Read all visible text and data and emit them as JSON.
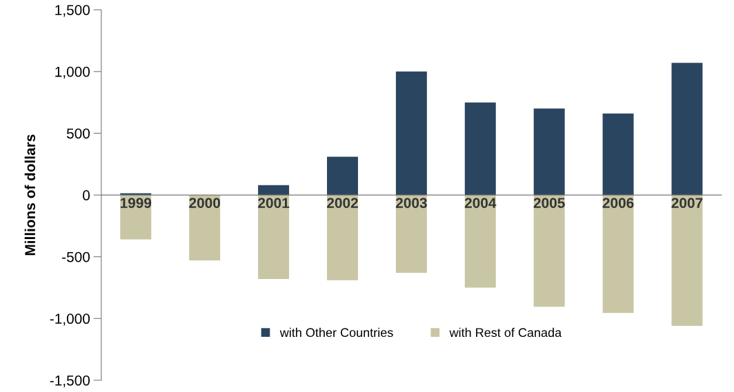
{
  "chart_data": {
    "type": "bar",
    "ylabel": "Millions of dollars",
    "stacked": true,
    "categories": [
      "1999",
      "2000",
      "2001",
      "2002",
      "2003",
      "2004",
      "2005",
      "2006",
      "2007"
    ],
    "series": [
      {
        "name": "with Other Countries",
        "color": "#2a4560",
        "values": [
          15,
          0,
          80,
          310,
          1000,
          750,
          700,
          660,
          1070
        ]
      },
      {
        "name": "with Rest of Canada",
        "color": "#c8c6a4",
        "values": [
          -360,
          -530,
          -680,
          -690,
          -630,
          -750,
          -905,
          -955,
          -1060
        ]
      }
    ],
    "ylim": [
      -1500,
      1500
    ],
    "yticks": [
      {
        "value": -1500,
        "label": "-1,500"
      },
      {
        "value": -1000,
        "label": "-1,000"
      },
      -500,
      0,
      500,
      {
        "value": 1000,
        "label": "1,000"
      },
      {
        "value": 1500,
        "label": "1,500"
      }
    ],
    "grid": false,
    "legend": "bottom"
  }
}
